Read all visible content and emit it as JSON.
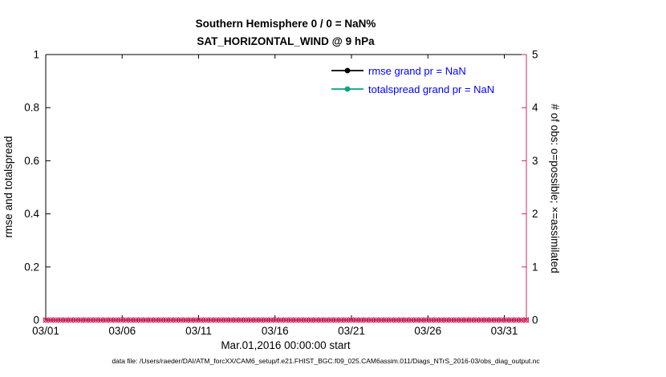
{
  "title": {
    "line1": "Southern Hemisphere 0 / 0 = NaN%",
    "line2": "SAT_HORIZONTAL_WIND @ 9 hPa"
  },
  "axes": {
    "left_label": "rmse and totalspread",
    "right_label": "# of obs: o=possible; ×=assimilated",
    "x_label": "Mar.01,2016 00:00:00 start",
    "x_ticks": [
      "03/01",
      "03/06",
      "03/11",
      "03/16",
      "03/21",
      "03/26",
      "03/31"
    ],
    "y_left_ticks": [
      "0",
      "0.2",
      "0.4",
      "0.6",
      "0.8",
      "1"
    ],
    "y_right_ticks": [
      "0",
      "1",
      "2",
      "3",
      "4",
      "5"
    ]
  },
  "legend_items": [
    {
      "label": "rmse grand pr = NaN",
      "color": "#000000"
    },
    {
      "label": "totalspread grand pr = NaN",
      "color": "#00a38b"
    }
  ],
  "colors": {
    "obs": "#d62462",
    "legend_text": "#0000ff",
    "axis": "#000000"
  },
  "footer": "data file: /Users/raeder/DAI/ATM_forcXX/CAM6_setup/f.e21.FHIST_BGC.f09_025.CAM6assim.011/Diags_NTrS_2016-03/obs_diag_output.nc",
  "chart_data": {
    "type": "line",
    "title": "Southern Hemisphere 0 / 0 = NaN% — SAT_HORIZONTAL_WIND @ 9 hPa",
    "xlabel": "Mar.01,2016 00:00:00 start",
    "ylabel_left": "rmse and totalspread",
    "ylabel_right": "# of obs: o=possible; ×=assimilated",
    "x_tick_labels": [
      "03/01",
      "03/06",
      "03/11",
      "03/16",
      "03/21",
      "03/26",
      "03/31"
    ],
    "x_range_days": [
      0,
      31.4
    ],
    "ylim_left": [
      0,
      1
    ],
    "ylim_right": [
      0,
      5
    ],
    "grid": false,
    "legend_position": "upper center-right, no frame",
    "series": [
      {
        "name": "rmse grand pr",
        "values": "NaN",
        "note": "no line drawn, all NaN"
      },
      {
        "name": "totalspread grand pr",
        "values": "NaN",
        "note": "no line drawn, all NaN"
      }
    ],
    "obs_counts": {
      "possible": 0,
      "assimilated": 0,
      "marker_value_right_axis": 0,
      "n_marker_positions": 97,
      "note": "crimson o and × markers overlapped at y=0 across the entire x-axis"
    }
  }
}
